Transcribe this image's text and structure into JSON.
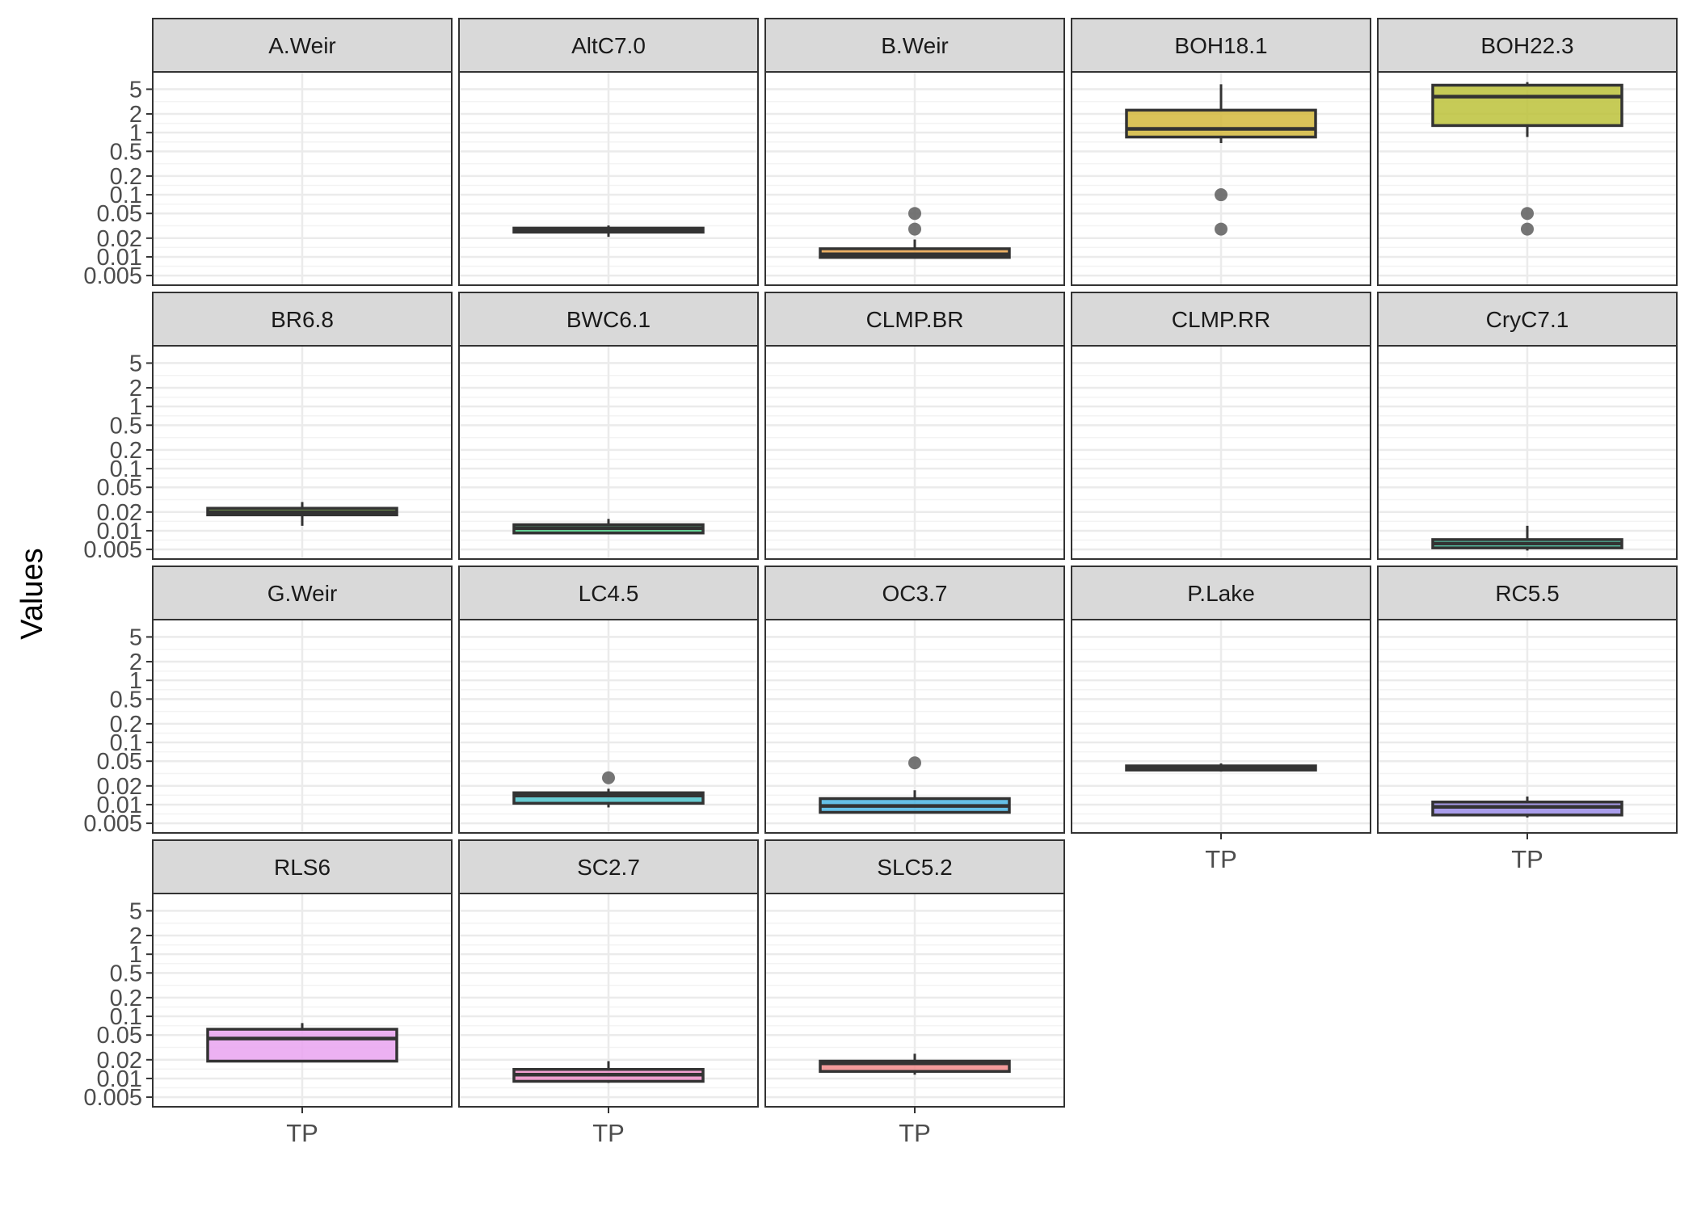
{
  "chart_data": {
    "type": "box",
    "title": "",
    "xlabel": "",
    "ylabel": "Values",
    "y_scale": "log10",
    "ylim": [
      0.0035,
      9.5
    ],
    "y_ticks": [
      0.005,
      0.01,
      0.02,
      0.05,
      0.1,
      0.2,
      0.5,
      1,
      2,
      5
    ],
    "y_tick_labels": [
      "0.005",
      "0.01",
      "0.02",
      "0.05",
      "0.1",
      "0.2",
      "0.5",
      "1",
      "2",
      "5"
    ],
    "x_category": "TP",
    "facet_columns": 5,
    "grid": true,
    "legend": "none",
    "colors": {
      "strip_fill": "#d9d9d9",
      "panel_border": "#333333",
      "grid_major": "#ebebeb",
      "grid_minor": "#f3f3f3",
      "box_outline": "#333333",
      "outlier": "#666666",
      "axis_text": "#4d4d4d"
    },
    "facets": [
      {
        "name": "A.Weir",
        "box": null
      },
      {
        "name": "AltC7.0",
        "box": {
          "min": 0.021,
          "q1": 0.025,
          "median": 0.027,
          "q3": 0.029,
          "max": 0.032
        },
        "color": "#5e3c3c",
        "outliers": []
      },
      {
        "name": "B.Weir",
        "box": {
          "min": 0.0095,
          "q1": 0.0098,
          "median": 0.011,
          "q3": 0.0135,
          "max": 0.019
        },
        "color": "#e8a24a",
        "outliers": [
          0.05,
          0.028
        ]
      },
      {
        "name": "BOH18.1",
        "box": {
          "min": 0.68,
          "q1": 0.85,
          "median": 1.15,
          "q3": 2.3,
          "max": 6.0
        },
        "color": "#d4b83c",
        "outliers": [
          0.1,
          0.028
        ]
      },
      {
        "name": "BOH22.3",
        "box": {
          "min": 0.85,
          "q1": 1.3,
          "median": 3.8,
          "q3": 5.8,
          "max": 6.5
        },
        "color": "#bcc23a",
        "outliers": [
          0.05,
          0.028
        ]
      },
      {
        "name": "BR6.8",
        "box": {
          "min": 0.012,
          "q1": 0.018,
          "median": 0.02,
          "q3": 0.023,
          "max": 0.029
        },
        "color": "#7fbf3f",
        "outliers": []
      },
      {
        "name": "BWC6.1",
        "box": {
          "min": 0.0088,
          "q1": 0.0092,
          "median": 0.011,
          "q3": 0.0125,
          "max": 0.0155
        },
        "color": "#4fcc86",
        "outliers": []
      },
      {
        "name": "CLMP.BR",
        "box": null
      },
      {
        "name": "CLMP.RR",
        "box": null
      },
      {
        "name": "CryC7.1",
        "box": {
          "min": 0.0048,
          "q1": 0.0053,
          "median": 0.0062,
          "q3": 0.0072,
          "max": 0.012
        },
        "color": "#3cc4a0",
        "outliers": []
      },
      {
        "name": "G.Weir",
        "box": null
      },
      {
        "name": "LC4.5",
        "box": {
          "min": 0.009,
          "q1": 0.0105,
          "median": 0.014,
          "q3": 0.0155,
          "max": 0.018
        },
        "color": "#4cc1c9",
        "outliers": [
          0.027
        ]
      },
      {
        "name": "OC3.7",
        "box": {
          "min": 0.0075,
          "q1": 0.0075,
          "median": 0.0095,
          "q3": 0.0125,
          "max": 0.017
        },
        "color": "#4ab4e2",
        "outliers": [
          0.047
        ]
      },
      {
        "name": "P.Lake",
        "box": {
          "min": 0.034,
          "q1": 0.036,
          "median": 0.039,
          "q3": 0.042,
          "max": 0.046
        },
        "color": "#7f9be6",
        "outliers": []
      },
      {
        "name": "RC5.5",
        "box": {
          "min": 0.0062,
          "q1": 0.0068,
          "median": 0.0092,
          "q3": 0.011,
          "max": 0.0135
        },
        "color": "#9a8ce8",
        "outliers": []
      },
      {
        "name": "RLS6",
        "box": {
          "min": 0.019,
          "q1": 0.019,
          "median": 0.044,
          "q3": 0.062,
          "max": 0.078
        },
        "color": "#e9a3f0",
        "outliers": []
      },
      {
        "name": "SC2.7",
        "box": {
          "min": 0.0085,
          "q1": 0.009,
          "median": 0.0115,
          "q3": 0.014,
          "max": 0.019
        },
        "color": "#ef8fc8",
        "outliers": []
      },
      {
        "name": "SLC5.2",
        "box": {
          "min": 0.0115,
          "q1": 0.013,
          "median": 0.0175,
          "q3": 0.019,
          "max": 0.025
        },
        "color": "#f08a8a",
        "outliers": []
      }
    ]
  }
}
